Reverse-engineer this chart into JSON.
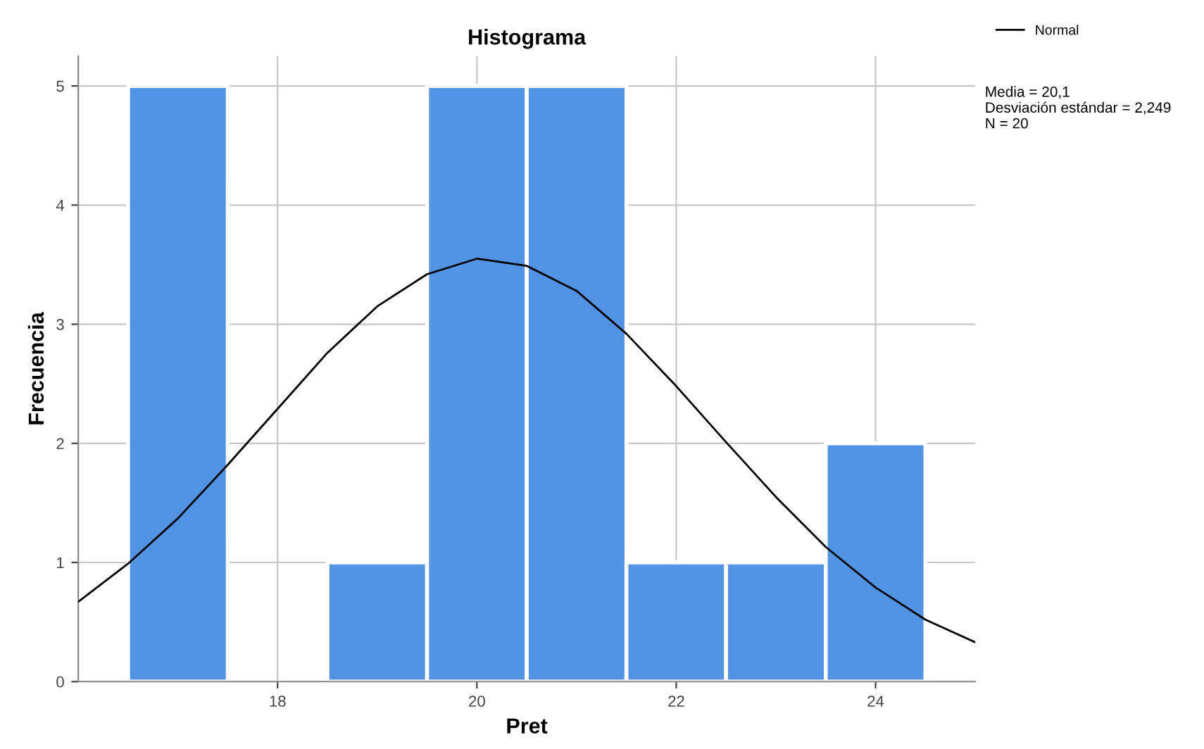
{
  "chart_data": {
    "type": "histogram",
    "title": "Histograma",
    "xlabel": "Pret",
    "ylabel": "Frecuencia",
    "bins": [
      16.5,
      17.5,
      18.5,
      19.5,
      20.5,
      21.5,
      22.5,
      23.5,
      24.5
    ],
    "values": [
      5,
      0,
      1,
      5,
      5,
      1,
      1,
      2
    ],
    "color": "#5293e3",
    "series": [
      {
        "type": "line",
        "name": "Normal",
        "color": "#000000",
        "x": [
          16,
          16.5,
          17,
          17.5,
          18,
          18.5,
          19,
          19.5,
          20,
          20.5,
          21,
          21.5,
          22,
          22.5,
          23,
          23.5,
          24,
          24.5,
          25
        ],
        "values": [
          0.67,
          0.99,
          1.37,
          1.82,
          2.29,
          2.76,
          3.15,
          3.42,
          3.55,
          3.49,
          3.28,
          2.92,
          2.48,
          2.01,
          1.55,
          1.13,
          0.79,
          0.52,
          0.33
        ]
      }
    ],
    "xlim": [
      16,
      25
    ],
    "xticks": [
      18,
      20,
      22,
      24
    ],
    "ylim": [
      0,
      5.25
    ],
    "yticks": [
      0,
      1,
      2,
      3,
      4,
      5
    ],
    "grid": true,
    "legend": "top right",
    "annotations": [
      "Media = 20,1",
      "Desviación estándar = 2,249",
      "N = 20"
    ]
  }
}
